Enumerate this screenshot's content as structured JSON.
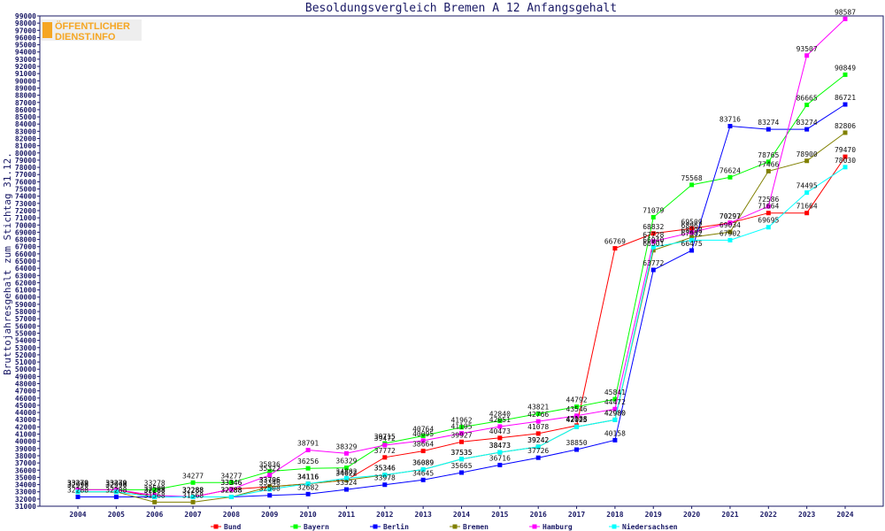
{
  "logo": {
    "line1": "ÖFFENTLICHER",
    "line2": "DIENST.INFO"
  },
  "chart_data": {
    "type": "line",
    "title": "Besoldungsvergleich Bremen A 12 Anfangsgehalt",
    "xlabel": "",
    "ylabel": "Bruttojahresgehalt zum Stichtag 31.12.",
    "ylim": [
      31000,
      99000
    ],
    "ytick_step": 1000,
    "x": [
      "2004",
      "2005",
      "2006",
      "2007",
      "2008",
      "2009",
      "2010",
      "2011",
      "2012",
      "2013",
      "2014",
      "2015",
      "2016",
      "2017",
      "2018",
      "2019",
      "2020",
      "2021",
      "2022",
      "2023",
      "2024"
    ],
    "legend_position": "bottom",
    "grid": false,
    "series": [
      {
        "name": "Bund",
        "color": "#ff0000",
        "values": [
          33279,
          33279,
          32288,
          32288,
          33346,
          33706,
          34116,
          34622,
          37772,
          38664,
          39927,
          40473,
          41078,
          42188,
          66769,
          68832,
          69509,
          70297,
          71664,
          71664,
          79470
        ]
      },
      {
        "name": "Bayern",
        "color": "#00ff00",
        "values": [
          33279,
          33279,
          33278,
          34277,
          34277,
          35836,
          36256,
          36329,
          39715,
          40764,
          41962,
          42840,
          43821,
          44792,
          45841,
          71079,
          75568,
          76624,
          78765,
          86665,
          90849
        ]
      },
      {
        "name": "Berlin",
        "color": "#0000ff",
        "values": [
          32288,
          32288,
          32288,
          32288,
          32288,
          32508,
          32682,
          33324,
          33978,
          34645,
          35665,
          36716,
          37726,
          38850,
          40158,
          63772,
          66475,
          83716,
          83274,
          83274,
          86721
        ]
      },
      {
        "name": "Bremen",
        "color": "#808000",
        "values": [
          32996,
          32996,
          31568,
          31568,
          32288,
          33706,
          34116,
          34622,
          35346,
          36089,
          37535,
          38473,
          39242,
          42025,
          42980,
          66501,
          68298,
          69034,
          77466,
          78900,
          82806
        ]
      },
      {
        "name": "Hamburg",
        "color": "#ff00ff",
        "values": [
          33279,
          33279,
          32509,
          32288,
          33346,
          35322,
          38791,
          38329,
          39472,
          40095,
          41105,
          42051,
          42766,
          43546,
          44472,
          67728,
          68962,
          70297,
          72586,
          93507,
          98587
        ]
      },
      {
        "name": "Niedersachsen",
        "color": "#00ffff",
        "values": [
          32996,
          32996,
          32288,
          32288,
          32288,
          33346,
          34116,
          34882,
          35346,
          36089,
          37535,
          38473,
          39242,
          42025,
          42980,
          66940,
          67902,
          67902,
          69695,
          74495,
          78030
        ]
      }
    ]
  }
}
